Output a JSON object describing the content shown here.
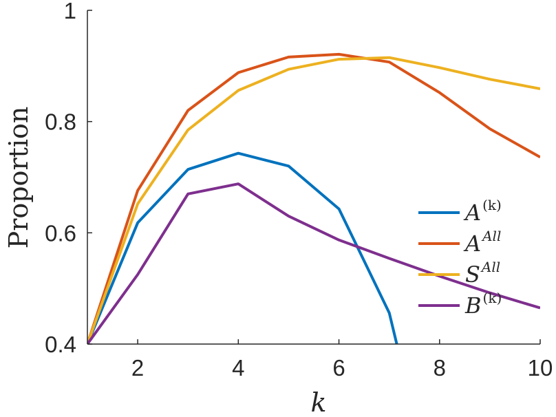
{
  "chart_data": {
    "type": "line",
    "xlabel": "k",
    "ylabel": "Proportion",
    "xlim": [
      1,
      10
    ],
    "ylim": [
      0.4,
      1
    ],
    "xticks": [
      2,
      4,
      6,
      8,
      10
    ],
    "yticks": [
      0.4,
      0.6,
      0.8,
      1
    ],
    "xtick_labels": [
      "2",
      "4",
      "6",
      "8",
      "10"
    ],
    "ytick_labels": [
      "0.4",
      "0.6",
      "0.8",
      "1"
    ],
    "grid": false,
    "legend_position": "bottom-right",
    "x": [
      1,
      2,
      3,
      4,
      5,
      6,
      7,
      8,
      9,
      10
    ],
    "series": [
      {
        "name": "A",
        "sup": "(k)",
        "color": "#0072BD",
        "x": [
          1,
          2,
          3,
          4,
          5,
          6,
          7,
          7.15
        ],
        "values": [
          0.4,
          0.618,
          0.714,
          0.743,
          0.72,
          0.643,
          0.456,
          0.4
        ]
      },
      {
        "name": "A",
        "sup": "All",
        "color": "#D95319",
        "x": [
          1,
          2,
          3,
          4,
          5,
          6,
          7,
          8,
          9,
          10
        ],
        "values": [
          0.4,
          0.676,
          0.82,
          0.888,
          0.916,
          0.921,
          0.907,
          0.852,
          0.787,
          0.736
        ]
      },
      {
        "name": "S",
        "sup": "All",
        "color": "#EDB120",
        "x": [
          1,
          2,
          3,
          4,
          5,
          6,
          7,
          8,
          9,
          10
        ],
        "values": [
          0.4,
          0.652,
          0.785,
          0.856,
          0.894,
          0.912,
          0.915,
          0.897,
          0.876,
          0.859
        ]
      },
      {
        "name": "B",
        "sup": "(k)",
        "color": "#7E2F8E",
        "x": [
          1,
          2,
          3,
          4,
          5,
          6,
          7,
          8,
          9,
          10
        ],
        "values": [
          0.4,
          0.525,
          0.67,
          0.688,
          0.63,
          0.587,
          0.554,
          0.522,
          0.492,
          0.465
        ]
      }
    ]
  }
}
